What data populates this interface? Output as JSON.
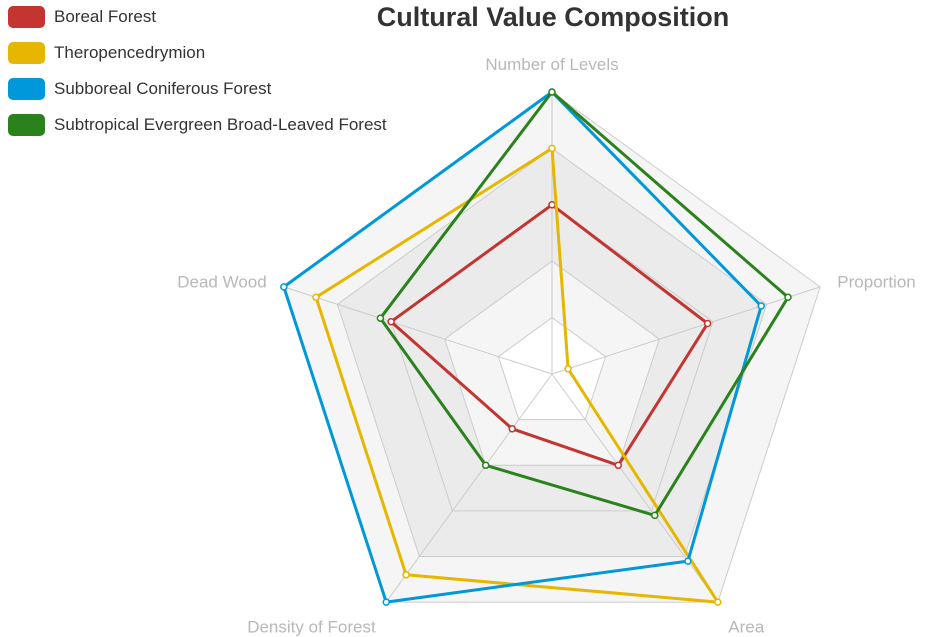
{
  "chart_data": {
    "type": "radar",
    "title": "Cultural Value Composition",
    "indicators": [
      "Number of Levels",
      "Proportion",
      "Area",
      "Density of Forest",
      "Dead Wood"
    ],
    "max": 5,
    "split_number": 5,
    "split_area": true,
    "legend_position": "top-left",
    "series": [
      {
        "name": "Boreal Forest",
        "color": "#c23531",
        "values": [
          3.0,
          2.9,
          2.0,
          1.2,
          3.0
        ]
      },
      {
        "name": "Theropencedrymion",
        "color": "#e6b600",
        "values": [
          4.0,
          0.3,
          5.0,
          4.4,
          4.4
        ]
      },
      {
        "name": "Subboreal Coniferous Forest",
        "color": "#0098d9",
        "values": [
          5.0,
          3.9,
          4.1,
          5.0,
          5.0
        ]
      },
      {
        "name": "Subtropical Evergreen Broad-Leaved Forest",
        "color": "#2b821d",
        "values": [
          5.0,
          4.4,
          3.1,
          2.0,
          3.2
        ]
      }
    ]
  }
}
